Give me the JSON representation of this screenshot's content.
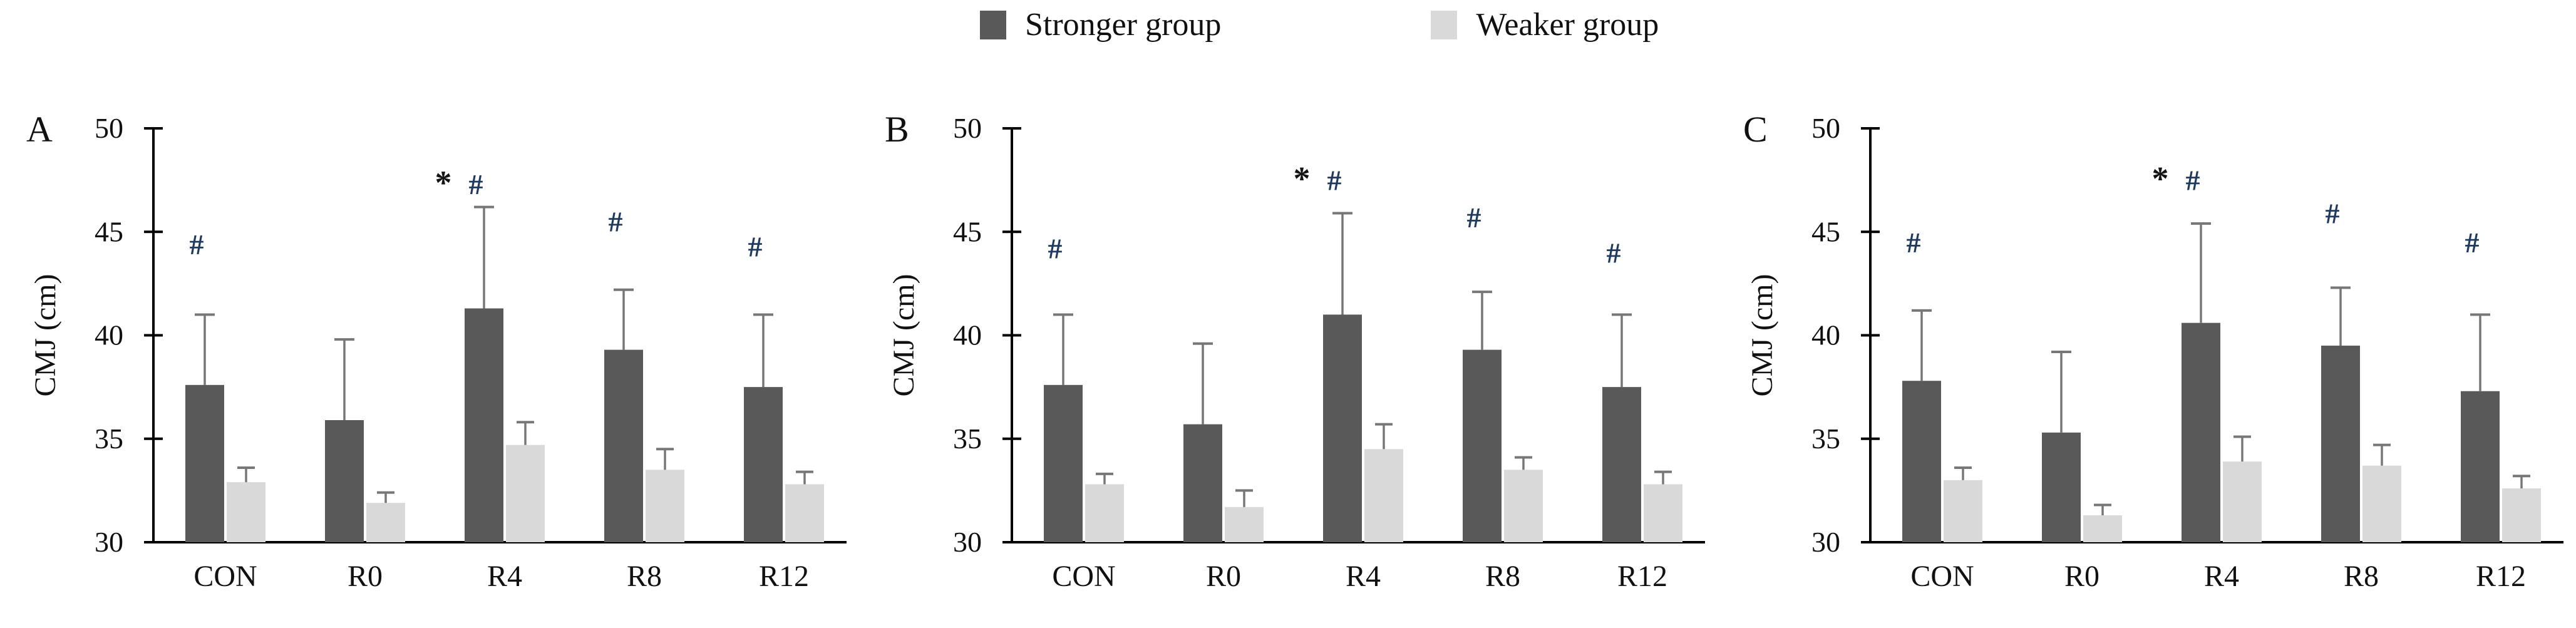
{
  "legend": {
    "items": [
      {
        "label": "Stronger group",
        "color": "#595959"
      },
      {
        "label": "Weaker group",
        "color": "#d9d9d9"
      }
    ]
  },
  "style": {
    "bar_dark": "#595959",
    "bar_light": "#d9d9d9",
    "error_bar": "#777777",
    "axis": "#000000",
    "text": "#111111",
    "hash_color": "#1f3a5f",
    "star_color": "#141414"
  },
  "chart_data": [
    {
      "panel_label": "A",
      "type": "bar",
      "title": "",
      "ylabel": "CMJ (cm)",
      "xlabel": "",
      "ylim": [
        30,
        50
      ],
      "yticks": [
        30,
        35,
        40,
        45,
        50
      ],
      "grid": false,
      "legend_position": "top-center-shared",
      "categories": [
        "CON",
        "R0",
        "R4",
        "R8",
        "R12"
      ],
      "series": [
        {
          "name": "Stronger group",
          "values": [
            37.6,
            35.9,
            41.3,
            39.3,
            37.5
          ],
          "errors_up": [
            3.4,
            3.9,
            4.9,
            2.9,
            3.5
          ]
        },
        {
          "name": "Weaker group",
          "values": [
            32.9,
            31.9,
            34.7,
            33.5,
            32.8
          ],
          "errors_up": [
            0.7,
            0.5,
            1.1,
            1.0,
            0.6
          ]
        }
      ],
      "annotations": [
        {
          "category": "CON",
          "star": "",
          "hash": "#",
          "y": 44.4
        },
        {
          "category": "R4",
          "star": "*",
          "hash": "#",
          "y": 47.3
        },
        {
          "category": "R8",
          "star": "",
          "hash": "#",
          "y": 45.5
        },
        {
          "category": "R12",
          "star": "",
          "hash": "#",
          "y": 44.3
        }
      ]
    },
    {
      "panel_label": "B",
      "type": "bar",
      "title": "",
      "ylabel": "CMJ (cm)",
      "xlabel": "",
      "ylim": [
        30,
        50
      ],
      "yticks": [
        30,
        35,
        40,
        45,
        50
      ],
      "grid": false,
      "legend_position": "top-center-shared",
      "categories": [
        "CON",
        "R0",
        "R4",
        "R8",
        "R12"
      ],
      "series": [
        {
          "name": "Stronger group",
          "values": [
            37.6,
            35.7,
            41.0,
            39.3,
            37.5
          ],
          "errors_up": [
            3.4,
            3.9,
            4.9,
            2.8,
            3.5
          ]
        },
        {
          "name": "Weaker group",
          "values": [
            32.8,
            31.7,
            34.5,
            33.5,
            32.8
          ],
          "errors_up": [
            0.5,
            0.8,
            1.2,
            0.6,
            0.6
          ]
        }
      ],
      "annotations": [
        {
          "category": "CON",
          "star": "",
          "hash": "#",
          "y": 44.2
        },
        {
          "category": "R4",
          "star": "*",
          "hash": "#",
          "y": 47.5
        },
        {
          "category": "R8",
          "star": "",
          "hash": "#",
          "y": 45.7
        },
        {
          "category": "R12",
          "star": "",
          "hash": "#",
          "y": 44.0
        }
      ]
    },
    {
      "panel_label": "C",
      "type": "bar",
      "title": "",
      "ylabel": "CMJ (cm)",
      "xlabel": "",
      "ylim": [
        30,
        50
      ],
      "yticks": [
        30,
        35,
        40,
        45,
        50
      ],
      "grid": false,
      "legend_position": "top-center-shared",
      "categories": [
        "CON",
        "R0",
        "R4",
        "R8",
        "R12"
      ],
      "series": [
        {
          "name": "Stronger group",
          "values": [
            37.8,
            35.3,
            40.6,
            39.5,
            37.3
          ],
          "errors_up": [
            3.4,
            3.9,
            4.8,
            2.8,
            3.7
          ]
        },
        {
          "name": "Weaker group",
          "values": [
            33.0,
            31.3,
            33.9,
            33.7,
            32.6
          ],
          "errors_up": [
            0.6,
            0.5,
            1.2,
            1.0,
            0.6
          ]
        }
      ],
      "annotations": [
        {
          "category": "CON",
          "star": "",
          "hash": "#",
          "y": 44.5
        },
        {
          "category": "R4",
          "star": "*",
          "hash": "#",
          "y": 47.5
        },
        {
          "category": "R8",
          "star": "",
          "hash": "#",
          "y": 45.9
        },
        {
          "category": "R12",
          "star": "",
          "hash": "#",
          "y": 44.5
        }
      ]
    }
  ]
}
